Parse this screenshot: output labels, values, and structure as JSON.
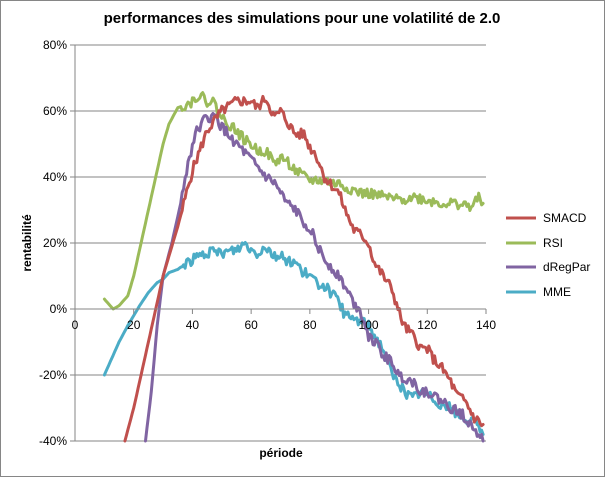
{
  "chart_data": {
    "type": "line",
    "title": "performances des simulations pour une volatilité de 2.0",
    "xlabel": "période",
    "ylabel": "rentabilité",
    "xlim": [
      0,
      140
    ],
    "ylim": [
      -40,
      80
    ],
    "x_ticks": [
      "0",
      "20",
      "40",
      "60",
      "80",
      "100",
      "120",
      "140"
    ],
    "y_ticks": [
      "80%",
      "60%",
      "40%",
      "20%",
      "0%",
      "-20%",
      "-40%"
    ],
    "grid": "horizontal",
    "legend_position": "right",
    "series": [
      {
        "name": "SMACD",
        "color": "#C0504D",
        "points": [
          [
            17,
            -40
          ],
          [
            20,
            -30
          ],
          [
            25,
            -10
          ],
          [
            30,
            10
          ],
          [
            35,
            25
          ],
          [
            40,
            42
          ],
          [
            45,
            54
          ],
          [
            50,
            60
          ],
          [
            55,
            63
          ],
          [
            60,
            63
          ],
          [
            62,
            61
          ],
          [
            65,
            64
          ],
          [
            68,
            58
          ],
          [
            70,
            60
          ],
          [
            75,
            53
          ],
          [
            78,
            53
          ],
          [
            80,
            49
          ],
          [
            82,
            47
          ],
          [
            85,
            40
          ],
          [
            90,
            35
          ],
          [
            92,
            30
          ],
          [
            95,
            24
          ],
          [
            98,
            22
          ],
          [
            100,
            20
          ],
          [
            102,
            14
          ],
          [
            105,
            10
          ],
          [
            108,
            6
          ],
          [
            110,
            0
          ],
          [
            112,
            -5
          ],
          [
            115,
            -8
          ],
          [
            118,
            -12
          ],
          [
            120,
            -12
          ],
          [
            122,
            -15
          ],
          [
            125,
            -18
          ],
          [
            128,
            -22
          ],
          [
            130,
            -26
          ],
          [
            133,
            -28
          ],
          [
            136,
            -33
          ],
          [
            139,
            -35
          ]
        ]
      },
      {
        "name": "RSI",
        "color": "#9BBB59",
        "points": [
          [
            10,
            3
          ],
          [
            13,
            0
          ],
          [
            15,
            1
          ],
          [
            18,
            4
          ],
          [
            20,
            10
          ],
          [
            22,
            18
          ],
          [
            25,
            30
          ],
          [
            28,
            42
          ],
          [
            30,
            50
          ],
          [
            32,
            56
          ],
          [
            35,
            61
          ],
          [
            38,
            62
          ],
          [
            40,
            63
          ],
          [
            42,
            65
          ],
          [
            45,
            63
          ],
          [
            47,
            63
          ],
          [
            50,
            58
          ],
          [
            55,
            54
          ],
          [
            58,
            51
          ],
          [
            60,
            50
          ],
          [
            62,
            48
          ],
          [
            65,
            48
          ],
          [
            68,
            44
          ],
          [
            70,
            46
          ],
          [
            72,
            45
          ],
          [
            75,
            42
          ],
          [
            78,
            40
          ],
          [
            80,
            39
          ],
          [
            82,
            39
          ],
          [
            85,
            39
          ],
          [
            88,
            38
          ],
          [
            90,
            38
          ],
          [
            92,
            37
          ],
          [
            95,
            36
          ],
          [
            98,
            35
          ],
          [
            100,
            35
          ],
          [
            105,
            34
          ],
          [
            110,
            33
          ],
          [
            115,
            34
          ],
          [
            120,
            33
          ],
          [
            125,
            32
          ],
          [
            130,
            32
          ],
          [
            135,
            31
          ],
          [
            138,
            34
          ],
          [
            139,
            32
          ]
        ]
      },
      {
        "name": "dRegPar",
        "color": "#8064A2",
        "points": [
          [
            24,
            -40
          ],
          [
            26,
            -25
          ],
          [
            28,
            -5
          ],
          [
            30,
            10
          ],
          [
            33,
            20
          ],
          [
            36,
            32
          ],
          [
            38,
            42
          ],
          [
            40,
            50
          ],
          [
            42,
            55
          ],
          [
            45,
            58
          ],
          [
            48,
            58
          ],
          [
            50,
            55
          ],
          [
            55,
            50
          ],
          [
            58,
            47
          ],
          [
            60,
            45
          ],
          [
            65,
            40
          ],
          [
            68,
            38
          ],
          [
            70,
            35
          ],
          [
            72,
            32
          ],
          [
            75,
            30
          ],
          [
            78,
            26
          ],
          [
            80,
            25
          ],
          [
            82,
            20
          ],
          [
            85,
            15
          ],
          [
            88,
            12
          ],
          [
            90,
            10
          ],
          [
            93,
            5
          ],
          [
            95,
            2
          ],
          [
            98,
            -2
          ],
          [
            100,
            -8
          ],
          [
            102,
            -10
          ],
          [
            105,
            -14
          ],
          [
            108,
            -16
          ],
          [
            110,
            -20
          ],
          [
            115,
            -22
          ],
          [
            118,
            -25
          ],
          [
            120,
            -25
          ],
          [
            125,
            -28
          ],
          [
            128,
            -30
          ],
          [
            132,
            -32
          ],
          [
            135,
            -35
          ],
          [
            138,
            -38
          ],
          [
            139,
            -40
          ]
        ]
      },
      {
        "name": "MME",
        "color": "#4BACC6",
        "points": [
          [
            10,
            -20
          ],
          [
            12,
            -16
          ],
          [
            15,
            -10
          ],
          [
            18,
            -5
          ],
          [
            20,
            -2
          ],
          [
            22,
            1
          ],
          [
            25,
            5
          ],
          [
            28,
            8
          ],
          [
            30,
            9
          ],
          [
            32,
            11
          ],
          [
            35,
            12
          ],
          [
            38,
            14
          ],
          [
            40,
            15
          ],
          [
            45,
            17
          ],
          [
            50,
            17
          ],
          [
            55,
            18
          ],
          [
            58,
            20
          ],
          [
            60,
            18
          ],
          [
            62,
            17
          ],
          [
            65,
            19
          ],
          [
            68,
            16
          ],
          [
            70,
            16
          ],
          [
            72,
            15
          ],
          [
            75,
            14
          ],
          [
            78,
            11
          ],
          [
            80,
            10
          ],
          [
            82,
            8
          ],
          [
            85,
            7
          ],
          [
            88,
            4
          ],
          [
            90,
            2
          ],
          [
            92,
            -2
          ],
          [
            95,
            -3
          ],
          [
            98,
            -4
          ],
          [
            100,
            -5
          ],
          [
            102,
            -8
          ],
          [
            105,
            -12
          ],
          [
            108,
            -20
          ],
          [
            110,
            -22
          ],
          [
            112,
            -25
          ],
          [
            115,
            -27
          ],
          [
            118,
            -25
          ],
          [
            120,
            -26
          ],
          [
            125,
            -29
          ],
          [
            128,
            -30
          ],
          [
            130,
            -32
          ],
          [
            132,
            -33
          ],
          [
            135,
            -34
          ],
          [
            138,
            -36
          ],
          [
            139,
            -38
          ]
        ]
      }
    ]
  }
}
